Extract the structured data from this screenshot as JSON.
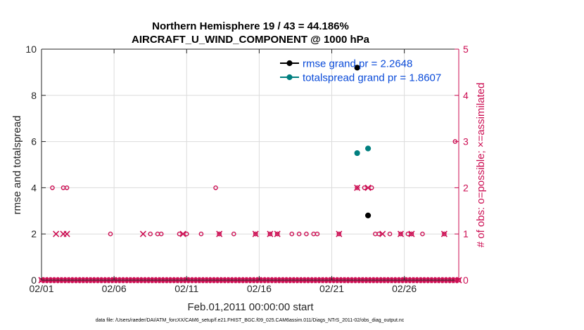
{
  "chart_data": {
    "type": "scatter",
    "title": [
      "Northern Hemisphere 19 / 43 = 44.186%",
      "AIRCRAFT_U_WIND_COMPONENT @ 1000 hPa"
    ],
    "xlabel": "Feb.01,2011 00:00:00 start",
    "ylabel_left": "rmse and totalspread",
    "ylabel_right": "# of obs: o=possible; ×=assimilated",
    "footer": "data file: /Users/raeder/DAI/ATM_forcXX/CAM6_setup/f.e21.FHIST_BGC.f09_025.CAM6assim.011/Diags_NTrS_2011-02/obs_diag_output.nc",
    "xlim": [
      1,
      29.75
    ],
    "ylim_left": [
      0,
      10
    ],
    "ylim_right": [
      0,
      5
    ],
    "x_ticks": [
      1,
      6,
      11,
      16,
      21,
      26
    ],
    "x_tick_labels": [
      "02/01",
      "02/06",
      "02/11",
      "02/16",
      "02/21",
      "02/26"
    ],
    "y_ticks_left": [
      0,
      2,
      4,
      6,
      8,
      10
    ],
    "y_ticks_right": [
      0,
      1,
      2,
      3,
      4,
      5
    ],
    "grid": true,
    "legend_position": "top-right",
    "colors": {
      "rmse": "#000000",
      "totalspread": "#007f7f",
      "obs": "#cc0d52",
      "legend_text": "#0a4bd9"
    },
    "series": [
      {
        "name": "rmse grand pr = 2.2648",
        "axis": "left",
        "x": [
          22.75,
          23.5
        ],
        "y": [
          9.2,
          2.8
        ]
      },
      {
        "name": "totalspread grand pr = 1.8607",
        "axis": "left",
        "x": [
          22.75,
          23.5
        ],
        "y": [
          5.5,
          5.7
        ]
      }
    ],
    "obs_possible": {
      "axis": "right",
      "x": [
        1.75,
        2.5,
        2.75,
        5.75,
        8.5,
        9.0,
        9.25,
        10.5,
        11.0,
        12.0,
        13.0,
        13.25,
        14.25,
        15.75,
        16.75,
        17.25,
        18.25,
        18.75,
        19.25,
        19.75,
        20.0,
        21.5,
        22.75,
        23.25,
        23.75,
        24.0,
        24.25,
        25.0,
        25.75,
        26.25,
        26.5,
        27.25,
        28.75,
        29.5
      ],
      "y": [
        2,
        2,
        2,
        1,
        1,
        1,
        1,
        1,
        1,
        1,
        2,
        1,
        1,
        1,
        1,
        1,
        1,
        1,
        1,
        1,
        1,
        1,
        2,
        2,
        2,
        1,
        1,
        1,
        1,
        1,
        1,
        1,
        1,
        3
      ]
    },
    "obs_assimilated": {
      "axis": "right",
      "x": [
        2.0,
        2.5,
        2.75,
        8.0,
        10.75,
        13.25,
        15.75,
        16.75,
        17.25,
        21.5,
        22.75,
        23.5,
        24.5,
        25.75,
        26.5,
        28.75
      ],
      "y": [
        1,
        1,
        1,
        1,
        1,
        1,
        1,
        1,
        1,
        1,
        2,
        2,
        1,
        1,
        1,
        1
      ]
    }
  }
}
